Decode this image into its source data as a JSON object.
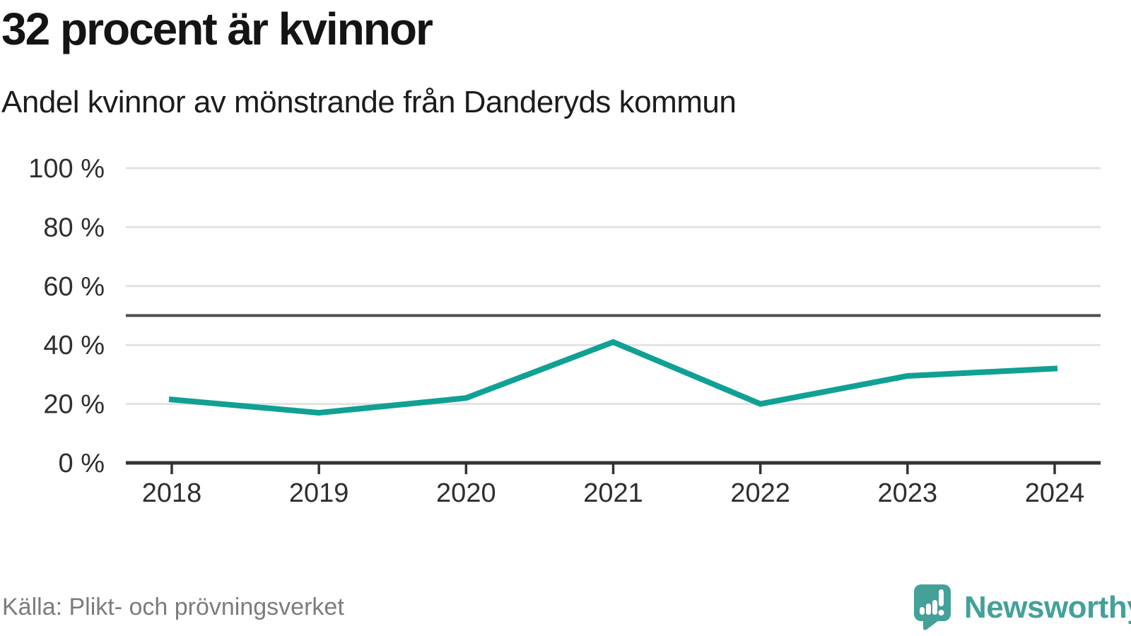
{
  "header": {
    "title": "32 procent är kvinnor",
    "subtitle": "Andel kvinnor av mönstrande från Danderyds kommun"
  },
  "chart_data": {
    "type": "line",
    "title": "32 procent är kvinnor",
    "subtitle": "Andel kvinnor av mönstrande från Danderyds kommun",
    "categories": [
      "2018",
      "2019",
      "2020",
      "2021",
      "2022",
      "2023",
      "2024"
    ],
    "series": [
      {
        "name": "Andel kvinnor av mönstrande",
        "values": [
          21.5,
          17,
          22,
          41,
          20,
          29.5,
          32
        ]
      }
    ],
    "ylim": [
      0,
      100
    ],
    "yticks": [
      {
        "value": 0,
        "label": "0 %"
      },
      {
        "value": 20,
        "label": "20 %"
      },
      {
        "value": 40,
        "label": "40 %"
      },
      {
        "value": 60,
        "label": "60 %"
      },
      {
        "value": 80,
        "label": "80 %"
      },
      {
        "value": 100,
        "label": "100 %"
      }
    ],
    "reference_line_value": 50,
    "grid": true,
    "legend": "none",
    "xlabel": "",
    "ylabel": ""
  },
  "footer": {
    "source": "Källa: Plikt- och prövningsverket",
    "brand": "Newsworthy"
  },
  "colors": {
    "line": "#10a094",
    "reference_line": "#4d4d4d",
    "gridline": "#e2e2e2",
    "axis": "#333333",
    "tick_label": "#2e2e2e",
    "title_text": "#141414",
    "source_text": "#7c7c7c",
    "brand_teal": "#43a199"
  }
}
